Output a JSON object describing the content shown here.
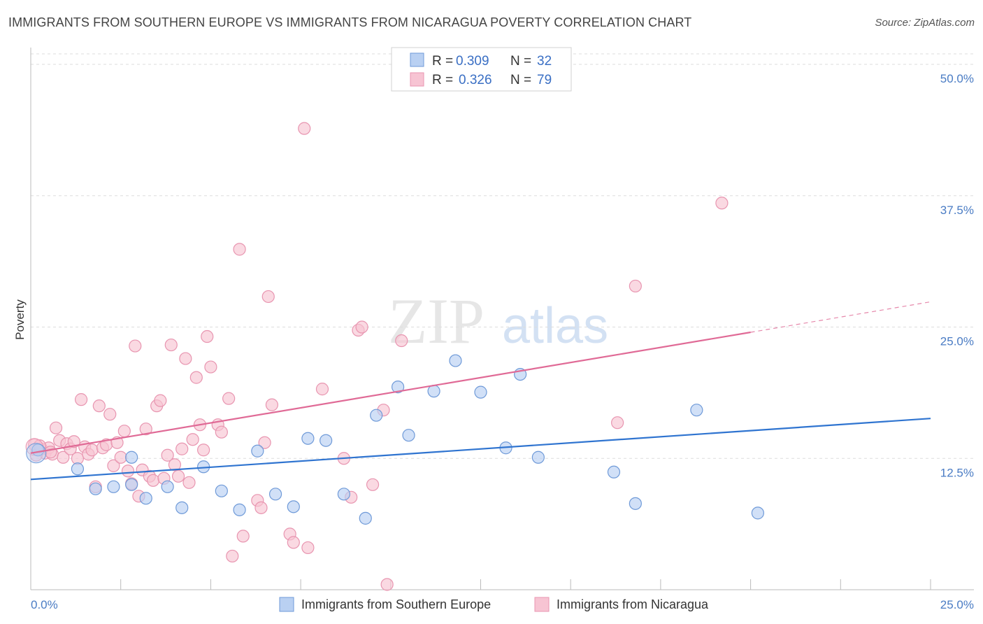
{
  "header": {
    "title": "IMMIGRANTS FROM SOUTHERN EUROPE VS IMMIGRANTS FROM NICARAGUA POVERTY CORRELATION CHART",
    "source": "Source: ZipAtlas.com"
  },
  "watermark": {
    "zip": "ZIP",
    "atlas": "atlas"
  },
  "legend": {
    "r_label": "R =",
    "n_label": "N =",
    "series": [
      {
        "r": "0.309",
        "n": "32"
      },
      {
        "r": "0.326",
        "n": "79"
      }
    ]
  },
  "colors": {
    "blue_fill": "#b9d0f2",
    "blue_stroke": "#6f9ad8",
    "blue_line": "#2f74d0",
    "pink_fill": "#f7c4d3",
    "pink_stroke": "#e895b0",
    "pink_line": "#e06a96",
    "tick_text": "#4a7cc4",
    "grid": "#dddddd"
  },
  "chart_data": {
    "type": "scatter",
    "title": "IMMIGRANTS FROM SOUTHERN EUROPE VS IMMIGRANTS FROM NICARAGUA POVERTY CORRELATION CHART",
    "xlabel": "",
    "ylabel": "Poverty",
    "xlim": [
      0,
      25
    ],
    "ylim": [
      0,
      51
    ],
    "x_tick_labels": [
      "0.0%",
      "25.0%"
    ],
    "y_ticks": [
      12.5,
      25.0,
      37.5,
      50.0
    ],
    "y_tick_labels": [
      "12.5%",
      "25.0%",
      "37.5%",
      "50.0%"
    ],
    "series": [
      {
        "name": "Immigrants from Southern Europe",
        "color": "blue",
        "r": 0.309,
        "n": 32,
        "trend": {
          "x0": 0,
          "y0": 10.5,
          "x1": 25,
          "y1": 16.3,
          "x_end": 25
        },
        "points": [
          [
            0.2,
            13.3
          ],
          [
            1.3,
            11.5
          ],
          [
            1.8,
            9.6
          ],
          [
            2.3,
            9.8
          ],
          [
            2.8,
            10.0
          ],
          [
            2.8,
            12.6
          ],
          [
            3.2,
            8.7
          ],
          [
            3.8,
            9.8
          ],
          [
            4.2,
            7.8
          ],
          [
            4.8,
            11.7
          ],
          [
            5.3,
            9.4
          ],
          [
            5.8,
            7.6
          ],
          [
            6.3,
            13.2
          ],
          [
            6.8,
            9.1
          ],
          [
            7.3,
            7.9
          ],
          [
            7.7,
            14.4
          ],
          [
            8.2,
            14.2
          ],
          [
            8.7,
            9.1
          ],
          [
            9.3,
            6.8
          ],
          [
            9.6,
            16.6
          ],
          [
            10.2,
            19.3
          ],
          [
            10.5,
            14.7
          ],
          [
            11.2,
            18.9
          ],
          [
            11.8,
            21.8
          ],
          [
            12.5,
            18.8
          ],
          [
            13.2,
            13.5
          ],
          [
            13.6,
            20.5
          ],
          [
            14.1,
            12.6
          ],
          [
            16.2,
            11.2
          ],
          [
            16.8,
            8.2
          ],
          [
            18.5,
            17.1
          ],
          [
            20.2,
            7.3
          ]
        ]
      },
      {
        "name": "Immigrants from Nicaragua",
        "color": "pink",
        "r": 0.326,
        "n": 79,
        "trend": {
          "x0": 0,
          "y0": 13.0,
          "x1": 20.0,
          "y1": 24.5,
          "x_end": 20.0,
          "dash_x1": 25,
          "dash_y1": 27.4
        },
        "points": [
          [
            0.1,
            13.8
          ],
          [
            0.3,
            13.4
          ],
          [
            0.4,
            13.0
          ],
          [
            0.5,
            13.5
          ],
          [
            0.6,
            12.9
          ],
          [
            0.7,
            15.4
          ],
          [
            0.8,
            14.2
          ],
          [
            0.9,
            12.6
          ],
          [
            1.0,
            13.9
          ],
          [
            1.1,
            13.4
          ],
          [
            1.2,
            14.1
          ],
          [
            1.3,
            12.5
          ],
          [
            1.4,
            18.1
          ],
          [
            1.5,
            13.6
          ],
          [
            1.6,
            12.9
          ],
          [
            1.7,
            13.3
          ],
          [
            1.8,
            9.8
          ],
          [
            1.9,
            17.5
          ],
          [
            2.0,
            13.5
          ],
          [
            2.1,
            13.8
          ],
          [
            2.2,
            16.7
          ],
          [
            2.3,
            11.8
          ],
          [
            2.4,
            14.0
          ],
          [
            2.5,
            12.6
          ],
          [
            2.6,
            15.1
          ],
          [
            2.7,
            11.3
          ],
          [
            2.8,
            10.1
          ],
          [
            2.9,
            23.2
          ],
          [
            3.0,
            8.9
          ],
          [
            3.1,
            11.4
          ],
          [
            3.2,
            15.3
          ],
          [
            3.3,
            10.8
          ],
          [
            3.4,
            10.4
          ],
          [
            3.5,
            17.5
          ],
          [
            3.6,
            18.0
          ],
          [
            3.7,
            10.6
          ],
          [
            3.8,
            12.8
          ],
          [
            3.9,
            23.3
          ],
          [
            4.0,
            11.9
          ],
          [
            4.1,
            10.8
          ],
          [
            4.2,
            13.4
          ],
          [
            4.3,
            22.0
          ],
          [
            4.4,
            10.2
          ],
          [
            4.5,
            14.3
          ],
          [
            4.6,
            20.2
          ],
          [
            4.7,
            15.7
          ],
          [
            4.8,
            13.3
          ],
          [
            4.9,
            24.1
          ],
          [
            5.0,
            21.2
          ],
          [
            5.2,
            15.7
          ],
          [
            5.3,
            15.0
          ],
          [
            5.5,
            18.2
          ],
          [
            5.6,
            3.2
          ],
          [
            5.8,
            32.4
          ],
          [
            5.9,
            5.1
          ],
          [
            6.3,
            8.5
          ],
          [
            6.4,
            7.8
          ],
          [
            6.5,
            14.0
          ],
          [
            6.6,
            27.9
          ],
          [
            6.7,
            17.6
          ],
          [
            7.2,
            5.3
          ],
          [
            7.3,
            4.5
          ],
          [
            7.6,
            43.9
          ],
          [
            7.7,
            4.0
          ],
          [
            8.1,
            19.1
          ],
          [
            8.7,
            12.5
          ],
          [
            8.9,
            8.8
          ],
          [
            9.1,
            24.7
          ],
          [
            9.2,
            25.0
          ],
          [
            9.5,
            10.0
          ],
          [
            9.8,
            17.1
          ],
          [
            9.9,
            0.5
          ],
          [
            10.3,
            23.7
          ],
          [
            16.3,
            15.9
          ],
          [
            16.8,
            28.9
          ],
          [
            19.2,
            36.8
          ],
          [
            0.15,
            12.8
          ],
          [
            0.25,
            13.7
          ],
          [
            0.55,
            13.1
          ]
        ]
      }
    ]
  },
  "bottom_legend": {
    "items": [
      {
        "label": "Immigrants from Southern Europe"
      },
      {
        "label": "Immigrants from Nicaragua"
      }
    ]
  }
}
